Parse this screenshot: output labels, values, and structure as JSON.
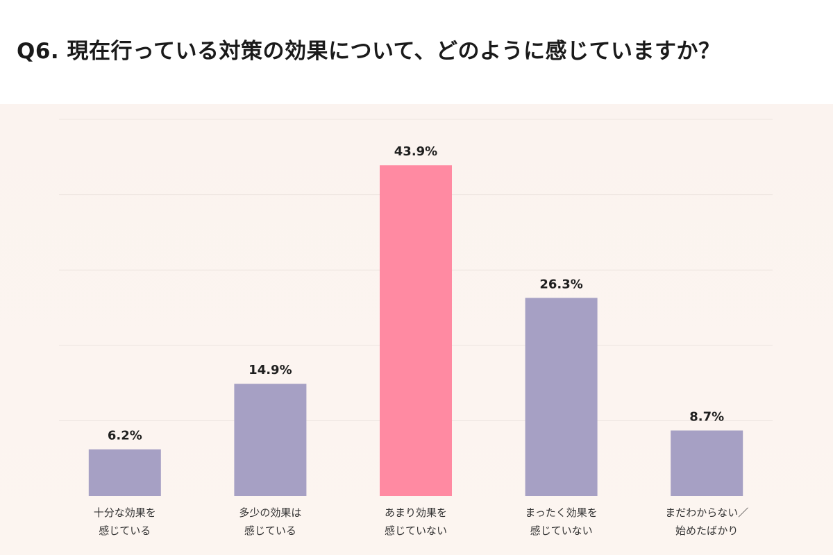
{
  "title": "Q6. 現在行っている対策の効果について、どのように感じていますか？",
  "colors": {
    "default_bar": "#a6a0c4",
    "highlight_bar": "#ff8aa2",
    "grid": "#ece4df"
  },
  "chart_data": {
    "type": "bar",
    "title": "Q6. 現在行っている対策の効果について、どのように感じていますか？",
    "categories": [
      [
        "十分な効果を",
        "感じている"
      ],
      [
        "多少の効果は",
        "感じている"
      ],
      [
        "あまり効果を",
        "感じていない"
      ],
      [
        "まったく効果を",
        "感じていない"
      ],
      [
        "まだわからない／",
        "始めたばかり"
      ]
    ],
    "values": [
      6.2,
      14.9,
      43.9,
      26.3,
      8.7
    ],
    "value_labels": [
      "6.2%",
      "14.9%",
      "43.9%",
      "26.3%",
      "8.7%"
    ],
    "highlight_index": 2,
    "ylim": [
      0,
      50
    ],
    "grid": true,
    "xlabel": "",
    "ylabel": ""
  }
}
